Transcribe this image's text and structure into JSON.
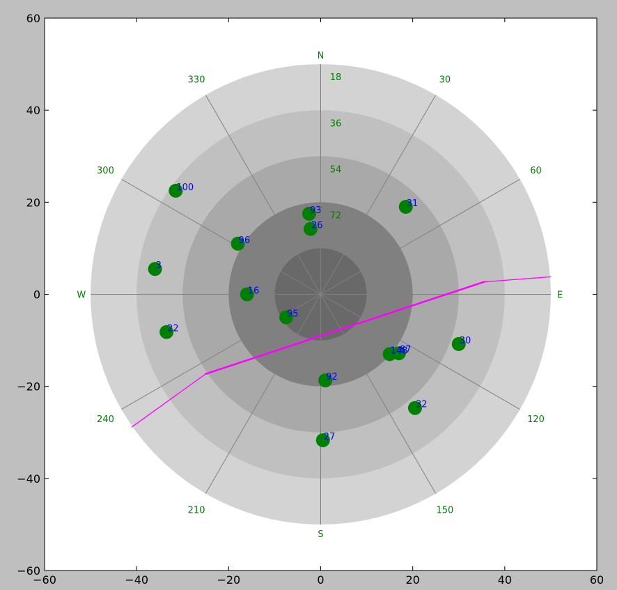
{
  "colors": {
    "figure_bg": "#bfbfbf",
    "axes_bg": "#ffffff",
    "ring_colors": [
      "#d3d3d3",
      "#c0c0c0",
      "#a9a9a9",
      "#808080",
      "#696969"
    ],
    "spoke": "#808080",
    "label_green": "#008000",
    "satellite": "#008000",
    "satellite_label": "#0000ff",
    "track": "#ff00ff"
  },
  "chart_data": {
    "type": "scatter",
    "title": "",
    "xlabel": "",
    "ylabel": "",
    "xlim": [
      -60,
      60
    ],
    "ylim": [
      -60,
      60
    ],
    "xticks": [
      -60,
      -40,
      -20,
      0,
      20,
      40,
      60
    ],
    "yticks": [
      -60,
      -40,
      -20,
      0,
      20,
      40,
      60
    ],
    "elevation_rings": {
      "radii": [
        50,
        40,
        30,
        20,
        10
      ],
      "labels": [
        "18",
        "36",
        "54",
        "72"
      ]
    },
    "azimuth_labels": [
      {
        "text": "N",
        "az": 0
      },
      {
        "text": "30",
        "az": 30
      },
      {
        "text": "60",
        "az": 60
      },
      {
        "text": "E",
        "az": 90
      },
      {
        "text": "120",
        "az": 120
      },
      {
        "text": "150",
        "az": 150
      },
      {
        "text": "S",
        "az": 180
      },
      {
        "text": "210",
        "az": 210
      },
      {
        "text": "240",
        "az": 240
      },
      {
        "text": "W",
        "az": 270
      },
      {
        "text": "300",
        "az": 300
      },
      {
        "text": "330",
        "az": 330
      }
    ],
    "satellites": [
      {
        "label": "100",
        "x": -31.5,
        "y": 22.5
      },
      {
        "label": "93",
        "x": -2.5,
        "y": 17.5
      },
      {
        "label": "26",
        "x": -2.2,
        "y": 14.2
      },
      {
        "label": "31",
        "x": 18.5,
        "y": 19.0
      },
      {
        "label": "96",
        "x": -18.0,
        "y": 11.0
      },
      {
        "label": "3",
        "x": -36.0,
        "y": 5.5
      },
      {
        "label": "16",
        "x": -16.0,
        "y": 0.0
      },
      {
        "label": "95",
        "x": -7.5,
        "y": -5.0
      },
      {
        "label": "22",
        "x": -33.5,
        "y": -8.2
      },
      {
        "label": "148",
        "x": 15.0,
        "y": -13.0
      },
      {
        "label": "87",
        "x": 17.0,
        "y": -12.8
      },
      {
        "label": "30",
        "x": 30.0,
        "y": -10.8
      },
      {
        "label": "92",
        "x": 1.0,
        "y": -18.7
      },
      {
        "label": "32",
        "x": 20.5,
        "y": -24.7
      },
      {
        "label": "27",
        "x": 0.5,
        "y": -31.7
      }
    ],
    "track": [
      {
        "x": -41.0,
        "y": -28.8
      },
      {
        "x": -25.0,
        "y": -17.3
      },
      {
        "x": 35.5,
        "y": 2.7
      },
      {
        "x": 50.0,
        "y": 3.8
      }
    ]
  }
}
